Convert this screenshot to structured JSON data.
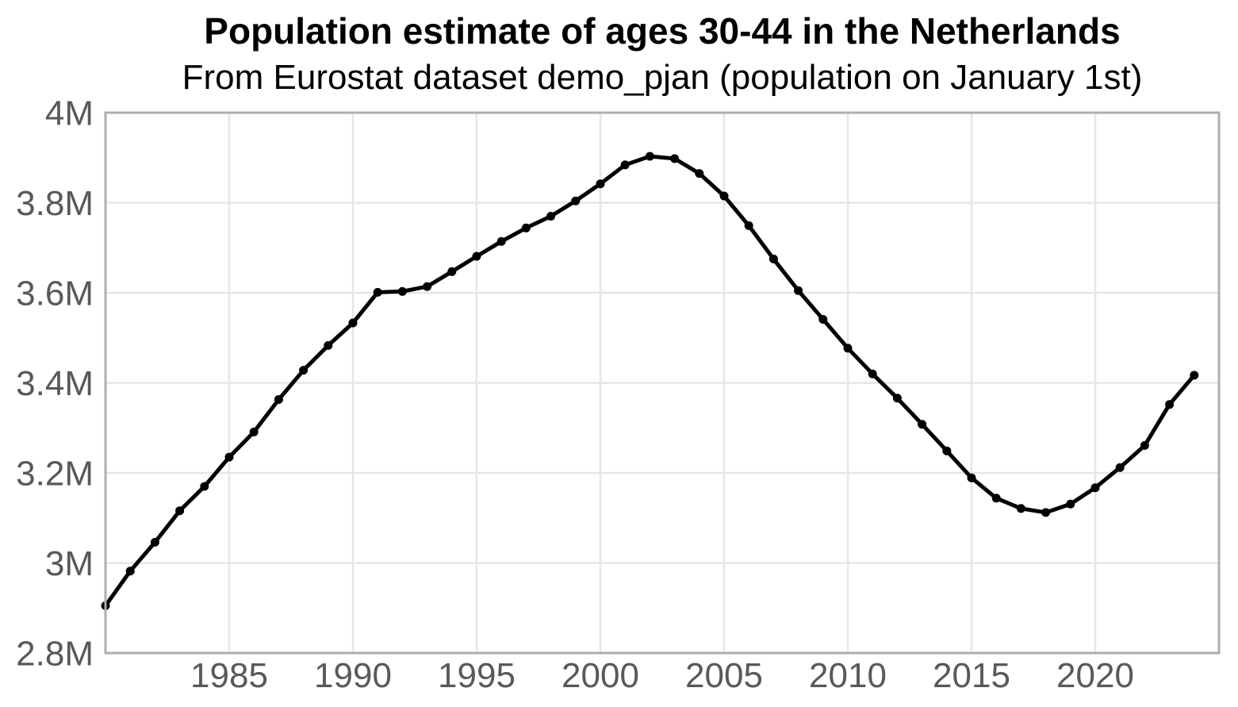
{
  "chart": {
    "title": "Population estimate of ages 30-44 in the Netherlands",
    "subtitle": "From Eurostat dataset demo_pjan (population on January 1st)"
  },
  "styles": {
    "background": "#ffffff",
    "grid_color": "#e6e6e6",
    "axis_border_color": "#aeaeae",
    "tick_label_color": "#595959",
    "title_color": "#000000",
    "line_color": "#000000",
    "marker_color": "#000000"
  },
  "chart_data": {
    "type": "line",
    "title": "Population estimate of ages 30-44 in the Netherlands",
    "subtitle": "From Eurostat dataset demo_pjan (population on January 1st)",
    "xlabel": "",
    "ylabel": "",
    "x_unit": "year (population on January 1st)",
    "y_unit": "persons, millions",
    "xlim": [
      1980,
      2025
    ],
    "ylim": [
      2.8,
      4.0
    ],
    "grid": true,
    "legend_position": "none",
    "x_ticks": [
      1985,
      1990,
      1995,
      2000,
      2005,
      2010,
      2015,
      2020
    ],
    "y_tick_values": [
      2.8,
      3.0,
      3.2,
      3.4,
      3.6,
      3.8,
      4.0
    ],
    "y_tick_labels": [
      "2.8M",
      "3M",
      "3.2M",
      "3.4M",
      "3.6M",
      "3.8M",
      "4M"
    ],
    "series": [
      {
        "name": "Population ages 30-44, Netherlands",
        "x": [
          1980,
          1981,
          1982,
          1983,
          1984,
          1985,
          1986,
          1987,
          1988,
          1989,
          1990,
          1991,
          1992,
          1993,
          1994,
          1995,
          1996,
          1997,
          1998,
          1999,
          2000,
          2001,
          2002,
          2003,
          2004,
          2005,
          2006,
          2007,
          2008,
          2009,
          2010,
          2011,
          2012,
          2013,
          2014,
          2015,
          2016,
          2017,
          2018,
          2019,
          2020,
          2021,
          2022,
          2023,
          2024
        ],
        "values_millions": [
          2.905,
          2.982,
          3.046,
          3.116,
          3.17,
          3.235,
          3.291,
          3.363,
          3.428,
          3.483,
          3.533,
          3.601,
          3.603,
          3.614,
          3.647,
          3.681,
          3.714,
          3.744,
          3.77,
          3.804,
          3.842,
          3.884,
          3.903,
          3.898,
          3.865,
          3.815,
          3.749,
          3.675,
          3.605,
          3.541,
          3.477,
          3.42,
          3.366,
          3.308,
          3.249,
          3.189,
          3.144,
          3.121,
          3.112,
          3.131,
          3.167,
          3.212,
          3.261,
          3.352,
          3.417
        ]
      }
    ]
  }
}
